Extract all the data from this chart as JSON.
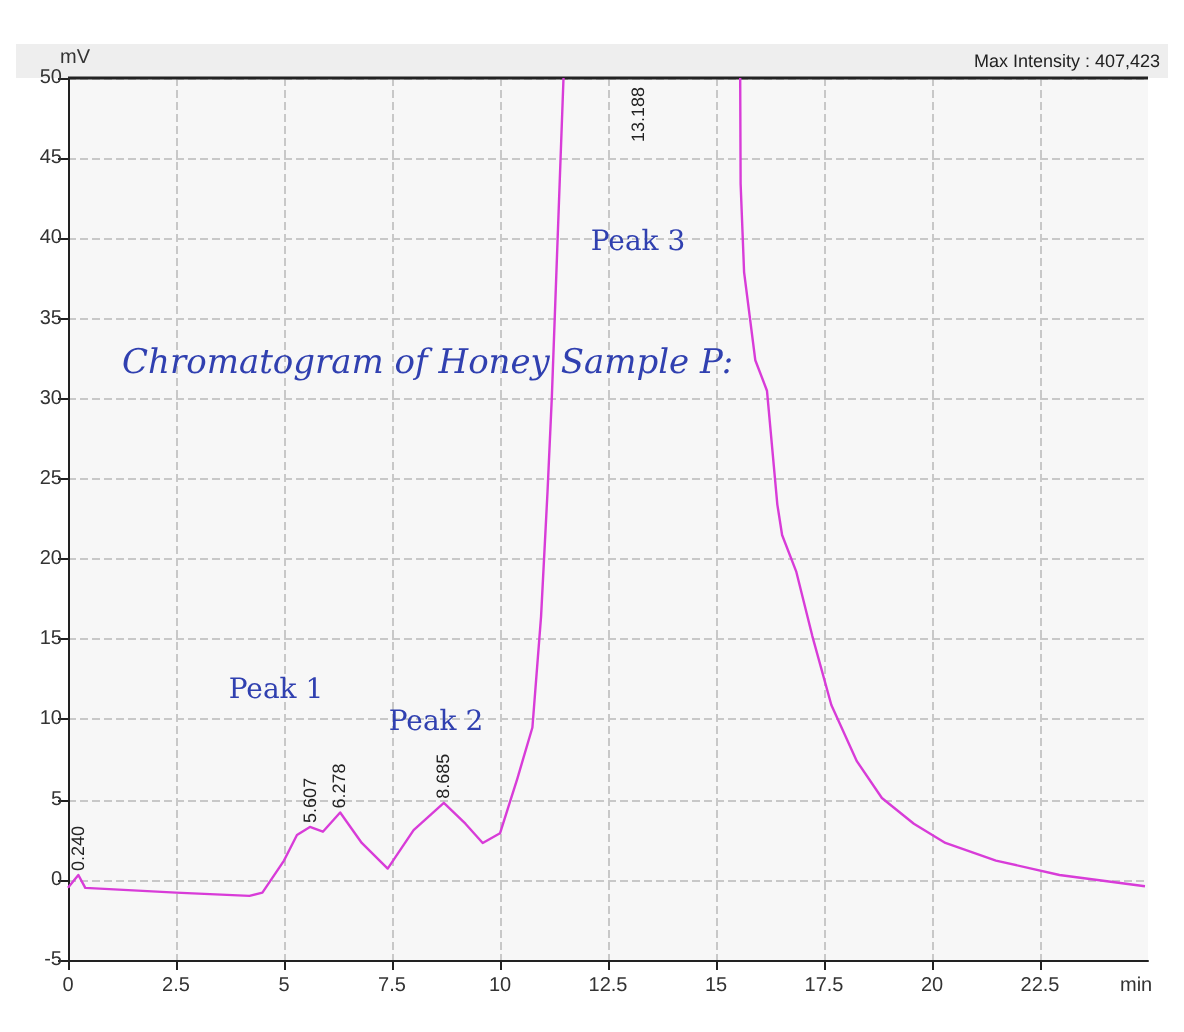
{
  "chart_data": {
    "type": "line",
    "title": "Chromatogram of Honey Sample P:",
    "xlabel": "min",
    "ylabel": "mV",
    "x": [
      0,
      0.24,
      0.4,
      2.5,
      4.2,
      4.5,
      5.0,
      5.3,
      5.6,
      5.9,
      6.3,
      6.8,
      7.4,
      8.0,
      8.7,
      9.2,
      9.6,
      10.0,
      10.4,
      10.75,
      10.95,
      11.1,
      11.2,
      11.47,
      13.5,
      15.56,
      15.57,
      15.65,
      15.91,
      16.18,
      16.42,
      16.53,
      16.86,
      17.23,
      17.67,
      18.26,
      18.84,
      19.58,
      20.31,
      21.48,
      22.95,
      24.93
    ],
    "series": [
      {
        "color": "#d83cd8",
        "values": [
          -0.5,
          0.3,
          -0.5,
          -0.8,
          -1.0,
          -0.8,
          1.2,
          2.8,
          3.3,
          3.0,
          4.2,
          2.3,
          0.7,
          3.1,
          4.8,
          3.5,
          2.3,
          2.9,
          6.3,
          9.5,
          16.4,
          24.2,
          30.1,
          50,
          null,
          50,
          43.4,
          37.9,
          32.4,
          30.5,
          23.4,
          21.5,
          19.2,
          15.2,
          10.9,
          7.4,
          5.1,
          3.5,
          2.3,
          1.2,
          0.3,
          -0.4
        ]
      }
    ],
    "xlim": [
      0,
      25
    ],
    "xticks": [
      0,
      2.5,
      5,
      7.5,
      10,
      12.5,
      15,
      17.5,
      20,
      22.5
    ],
    "ylim": [
      -5,
      50
    ],
    "yticks": [
      -5,
      0,
      5,
      10,
      15,
      20,
      25,
      30,
      35,
      40,
      45,
      50
    ],
    "grid": true,
    "marker": "none",
    "line_style": "solid",
    "annotations": [
      "Max Intensity : 407,423",
      {
        "text": "0.240",
        "x": 0.24,
        "y": 0.3
      },
      {
        "text": "5.607",
        "x": 5.607,
        "y": 3.3
      },
      {
        "text": "6.278",
        "x": 6.278,
        "y": 4.2
      },
      {
        "text": "8.685",
        "x": 8.685,
        "y": 4.8
      },
      "13.188",
      "Peak 1",
      "Peak 2",
      "Peak 3"
    ]
  }
}
